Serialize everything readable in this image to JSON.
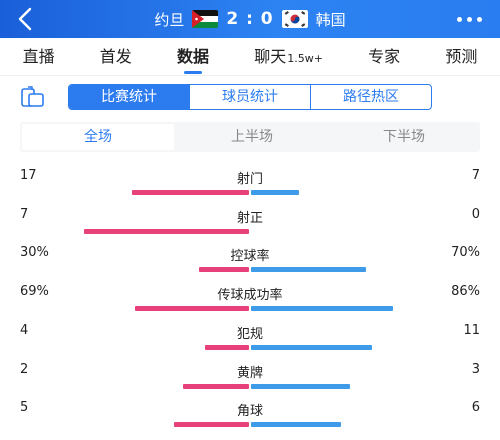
{
  "header": {
    "team_home": "约旦",
    "team_away": "韩国",
    "score": "2 : 0"
  },
  "nav": {
    "items": [
      {
        "label": "直播",
        "active": false
      },
      {
        "label": "首发",
        "active": false
      },
      {
        "label": "数据",
        "active": true
      },
      {
        "label": "聊天",
        "sup": "1.5w+",
        "active": false
      },
      {
        "label": "专家",
        "active": false
      },
      {
        "label": "预测",
        "active": false
      }
    ]
  },
  "subtabs": {
    "items": [
      {
        "label": "比赛统计",
        "active": true
      },
      {
        "label": "球员统计",
        "active": false
      },
      {
        "label": "路径热区",
        "active": false
      }
    ]
  },
  "period": {
    "items": [
      {
        "label": "全场",
        "active": true
      },
      {
        "label": "上半场",
        "active": false
      },
      {
        "label": "下半场",
        "active": false
      }
    ]
  },
  "colors": {
    "home_bar": "#e8407a",
    "away_bar": "#3d9be9",
    "accent": "#2c7cf0"
  },
  "stats": [
    {
      "name": "射门",
      "left": "17",
      "right": "7",
      "left_share": 0.708,
      "right_share": 0.292
    },
    {
      "name": "射正",
      "left": "7",
      "right": "0",
      "left_share": 1.0,
      "right_share": 0.0
    },
    {
      "name": "控球率",
      "left": "30%",
      "right": "70%",
      "left_share": 0.3,
      "right_share": 0.7
    },
    {
      "name": "传球成功率",
      "left": "69%",
      "right": "86%",
      "left_share": 0.69,
      "right_share": 0.86
    },
    {
      "name": "犯规",
      "left": "4",
      "right": "11",
      "left_share": 0.267,
      "right_share": 0.733
    },
    {
      "name": "黄牌",
      "left": "2",
      "right": "3",
      "left_share": 0.4,
      "right_share": 0.6
    },
    {
      "name": "角球",
      "left": "5",
      "right": "6",
      "left_share": 0.455,
      "right_share": 0.545
    }
  ]
}
